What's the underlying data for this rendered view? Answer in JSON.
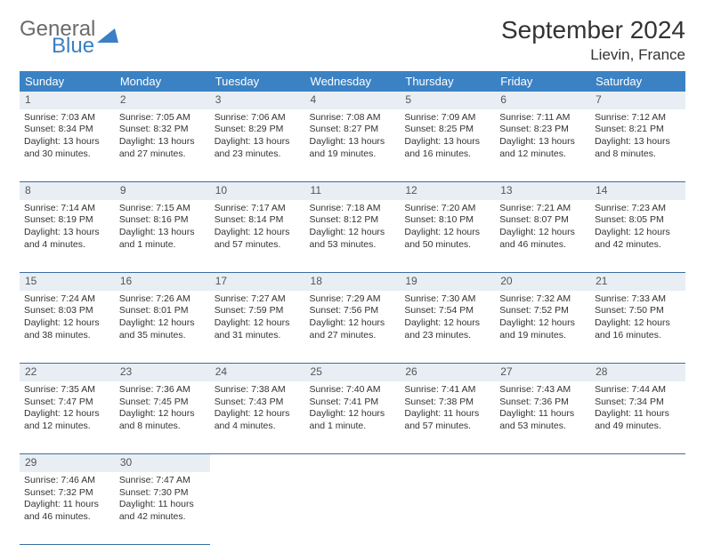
{
  "logo": {
    "line1": "General",
    "line2": "Blue"
  },
  "title": "September 2024",
  "location": "Lievin, France",
  "colors": {
    "header_bg": "#3b82c4",
    "header_text": "#ffffff",
    "daynum_bg": "#e8eef4",
    "border": "#3b6fa0",
    "logo_gray": "#6b6b6b",
    "logo_blue": "#3b7fc4"
  },
  "weekdays": [
    "Sunday",
    "Monday",
    "Tuesday",
    "Wednesday",
    "Thursday",
    "Friday",
    "Saturday"
  ],
  "weeks": [
    {
      "nums": [
        "1",
        "2",
        "3",
        "4",
        "5",
        "6",
        "7"
      ],
      "cells": [
        {
          "sunrise": "7:03 AM",
          "sunset": "8:34 PM",
          "daylight": "13 hours and 30 minutes."
        },
        {
          "sunrise": "7:05 AM",
          "sunset": "8:32 PM",
          "daylight": "13 hours and 27 minutes."
        },
        {
          "sunrise": "7:06 AM",
          "sunset": "8:29 PM",
          "daylight": "13 hours and 23 minutes."
        },
        {
          "sunrise": "7:08 AM",
          "sunset": "8:27 PM",
          "daylight": "13 hours and 19 minutes."
        },
        {
          "sunrise": "7:09 AM",
          "sunset": "8:25 PM",
          "daylight": "13 hours and 16 minutes."
        },
        {
          "sunrise": "7:11 AM",
          "sunset": "8:23 PM",
          "daylight": "13 hours and 12 minutes."
        },
        {
          "sunrise": "7:12 AM",
          "sunset": "8:21 PM",
          "daylight": "13 hours and 8 minutes."
        }
      ]
    },
    {
      "nums": [
        "8",
        "9",
        "10",
        "11",
        "12",
        "13",
        "14"
      ],
      "cells": [
        {
          "sunrise": "7:14 AM",
          "sunset": "8:19 PM",
          "daylight": "13 hours and 4 minutes."
        },
        {
          "sunrise": "7:15 AM",
          "sunset": "8:16 PM",
          "daylight": "13 hours and 1 minute."
        },
        {
          "sunrise": "7:17 AM",
          "sunset": "8:14 PM",
          "daylight": "12 hours and 57 minutes."
        },
        {
          "sunrise": "7:18 AM",
          "sunset": "8:12 PM",
          "daylight": "12 hours and 53 minutes."
        },
        {
          "sunrise": "7:20 AM",
          "sunset": "8:10 PM",
          "daylight": "12 hours and 50 minutes."
        },
        {
          "sunrise": "7:21 AM",
          "sunset": "8:07 PM",
          "daylight": "12 hours and 46 minutes."
        },
        {
          "sunrise": "7:23 AM",
          "sunset": "8:05 PM",
          "daylight": "12 hours and 42 minutes."
        }
      ]
    },
    {
      "nums": [
        "15",
        "16",
        "17",
        "18",
        "19",
        "20",
        "21"
      ],
      "cells": [
        {
          "sunrise": "7:24 AM",
          "sunset": "8:03 PM",
          "daylight": "12 hours and 38 minutes."
        },
        {
          "sunrise": "7:26 AM",
          "sunset": "8:01 PM",
          "daylight": "12 hours and 35 minutes."
        },
        {
          "sunrise": "7:27 AM",
          "sunset": "7:59 PM",
          "daylight": "12 hours and 31 minutes."
        },
        {
          "sunrise": "7:29 AM",
          "sunset": "7:56 PM",
          "daylight": "12 hours and 27 minutes."
        },
        {
          "sunrise": "7:30 AM",
          "sunset": "7:54 PM",
          "daylight": "12 hours and 23 minutes."
        },
        {
          "sunrise": "7:32 AM",
          "sunset": "7:52 PM",
          "daylight": "12 hours and 19 minutes."
        },
        {
          "sunrise": "7:33 AM",
          "sunset": "7:50 PM",
          "daylight": "12 hours and 16 minutes."
        }
      ]
    },
    {
      "nums": [
        "22",
        "23",
        "24",
        "25",
        "26",
        "27",
        "28"
      ],
      "cells": [
        {
          "sunrise": "7:35 AM",
          "sunset": "7:47 PM",
          "daylight": "12 hours and 12 minutes."
        },
        {
          "sunrise": "7:36 AM",
          "sunset": "7:45 PM",
          "daylight": "12 hours and 8 minutes."
        },
        {
          "sunrise": "7:38 AM",
          "sunset": "7:43 PM",
          "daylight": "12 hours and 4 minutes."
        },
        {
          "sunrise": "7:40 AM",
          "sunset": "7:41 PM",
          "daylight": "12 hours and 1 minute."
        },
        {
          "sunrise": "7:41 AM",
          "sunset": "7:38 PM",
          "daylight": "11 hours and 57 minutes."
        },
        {
          "sunrise": "7:43 AM",
          "sunset": "7:36 PM",
          "daylight": "11 hours and 53 minutes."
        },
        {
          "sunrise": "7:44 AM",
          "sunset": "7:34 PM",
          "daylight": "11 hours and 49 minutes."
        }
      ]
    },
    {
      "nums": [
        "29",
        "30",
        "",
        "",
        "",
        "",
        ""
      ],
      "cells": [
        {
          "sunrise": "7:46 AM",
          "sunset": "7:32 PM",
          "daylight": "11 hours and 46 minutes."
        },
        {
          "sunrise": "7:47 AM",
          "sunset": "7:30 PM",
          "daylight": "11 hours and 42 minutes."
        },
        null,
        null,
        null,
        null,
        null
      ]
    }
  ],
  "labels": {
    "sunrise": "Sunrise: ",
    "sunset": "Sunset: ",
    "daylight": "Daylight: "
  }
}
